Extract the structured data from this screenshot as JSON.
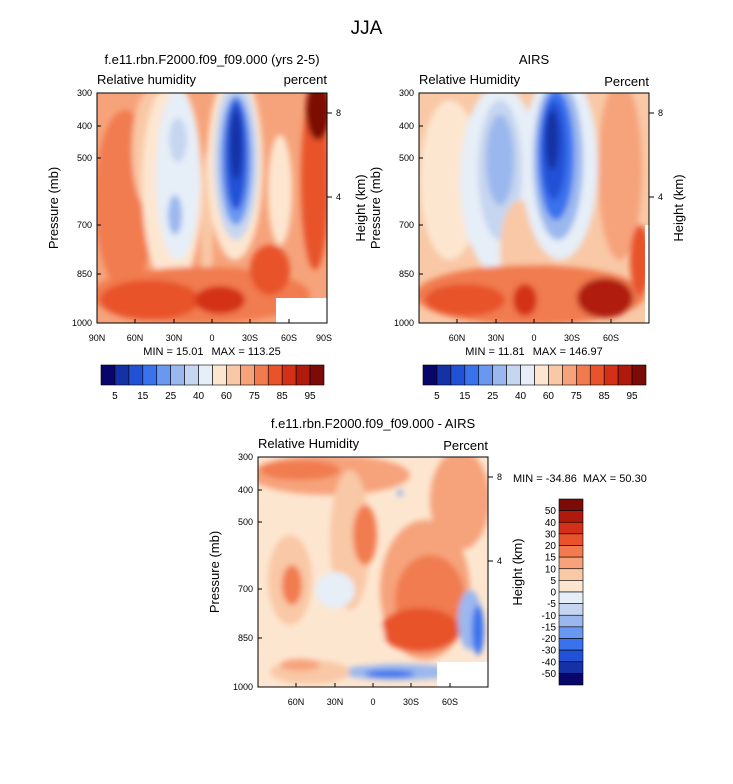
{
  "figure": {
    "title": "JJA"
  },
  "chart_data": [
    {
      "type": "contour",
      "title": "f.e11.rbn.F2000.f09_f09.000 (yrs 2-5)",
      "left_label": "Relative humidity",
      "right_label": "percent",
      "ylabel": "Pressure (mb)",
      "y2label": "Height (km)",
      "yticks": [
        "300",
        "400",
        "500",
        "700",
        "850",
        "1000"
      ],
      "y2ticks": [
        "8",
        "4"
      ],
      "xticks": [
        "90N",
        "60N",
        "30N",
        "0",
        "30S",
        "60S",
        "90S"
      ],
      "min_label": "MIN = ",
      "min_value": "15.01",
      "max_label": "MAX = ",
      "max_value": "113.25",
      "colorbar": {
        "labels": [
          "5",
          "15",
          "25",
          "40",
          "60",
          "75",
          "85",
          "95"
        ],
        "colors": [
          "#08066b",
          "#1531a6",
          "#2151d6",
          "#3a72ee",
          "#6a97f0",
          "#9bb8ee",
          "#c6d6f0",
          "#e6eef8",
          "#fde6d0",
          "#f9c8a6",
          "#f6a37b",
          "#f17b4f",
          "#e8532b",
          "#d43018",
          "#b01a0d",
          "#7c0a06"
        ]
      }
    },
    {
      "type": "contour",
      "title": "AIRS",
      "left_label": "Relative Humidity",
      "right_label": "Percent",
      "ylabel": "Pressure (mb)",
      "y2label": "Height (km)",
      "yticks": [
        "300",
        "400",
        "500",
        "700",
        "850",
        "1000"
      ],
      "y2ticks": [
        "8",
        "4"
      ],
      "xticks": [
        "60N",
        "30N",
        "0",
        "30S",
        "60S"
      ],
      "min_label": "MIN = ",
      "min_value": "11.81",
      "max_label": "MAX = ",
      "max_value": "146.97",
      "colorbar": {
        "labels": [
          "5",
          "15",
          "25",
          "40",
          "60",
          "75",
          "85",
          "95"
        ],
        "colors": [
          "#08066b",
          "#1531a6",
          "#2151d6",
          "#3a72ee",
          "#6a97f0",
          "#9bb8ee",
          "#c6d6f0",
          "#e6eef8",
          "#fde6d0",
          "#f9c8a6",
          "#f6a37b",
          "#f17b4f",
          "#e8532b",
          "#d43018",
          "#b01a0d",
          "#7c0a06"
        ]
      }
    },
    {
      "type": "contour",
      "title": "f.e11.rbn.F2000.f09_f09.000 - AIRS",
      "left_label": "Relative Humidity",
      "right_label": "Percent",
      "ylabel": "Pressure (mb)",
      "y2label": "Height (km)",
      "yticks": [
        "300",
        "400",
        "500",
        "700",
        "850",
        "1000"
      ],
      "y2ticks": [
        "8",
        "4"
      ],
      "xticks": [
        "60N",
        "30N",
        "0",
        "30S",
        "60S"
      ],
      "min_label": "MIN = ",
      "min_value": "-34.86",
      "max_label": "MAX = ",
      "max_value": "50.30",
      "colorbar": {
        "labels": [
          "50",
          "40",
          "30",
          "20",
          "15",
          "10",
          "5",
          "0",
          "-5",
          "-10",
          "-15",
          "-20",
          "-30",
          "-40",
          "-50"
        ],
        "colors": [
          "#7c0a06",
          "#b01a0d",
          "#d43018",
          "#e8532b",
          "#f17b4f",
          "#f6a37b",
          "#f9c8a6",
          "#fde6d0",
          "#e6eef8",
          "#c6d6f0",
          "#9bb8ee",
          "#6a97f0",
          "#3a72ee",
          "#2151d6",
          "#1531a6",
          "#08066b"
        ]
      }
    }
  ]
}
